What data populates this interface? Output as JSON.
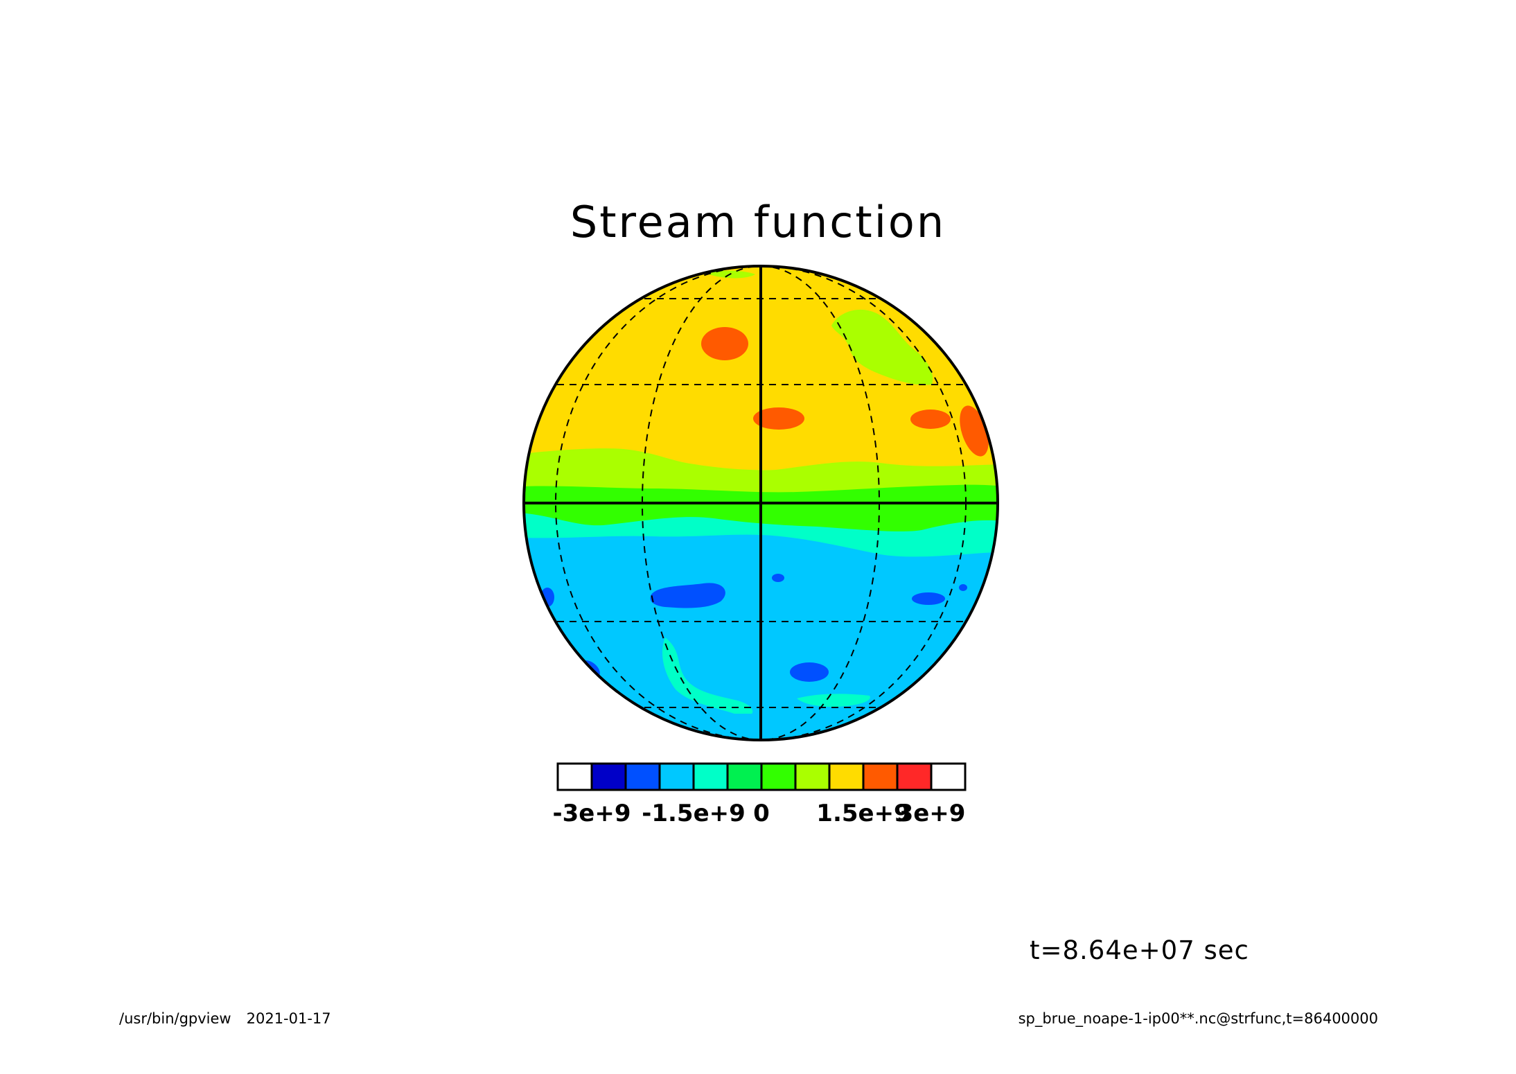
{
  "title": "Stream function",
  "time_label": "t=8.64e+07 sec",
  "footer": {
    "program": "/usr/bin/gpview",
    "date": "2021-01-17",
    "source": "sp_brue_noape-1-ip00**.nc@strfunc,t=86400000"
  },
  "colorbar": {
    "tick_labels": [
      "-3e+9",
      "-1.5e+9",
      "0",
      "1.5e+9",
      "3e+9"
    ],
    "tick_values": [
      -3000000000,
      -1500000000,
      0,
      1500000000,
      3000000000
    ],
    "levels": [
      {
        "color": "#ffffff"
      },
      {
        "color": "#0000c8"
      },
      {
        "color": "#0050ff"
      },
      {
        "color": "#00c8ff"
      },
      {
        "color": "#00ffc8"
      },
      {
        "color": "#00f050"
      },
      {
        "color": "#32ff00"
      },
      {
        "color": "#aaff00"
      },
      {
        "color": "#ffdc00"
      },
      {
        "color": "#ff5a00"
      },
      {
        "color": "#ff2828"
      },
      {
        "color": "#ffffff"
      }
    ]
  },
  "map": {
    "projection": "orthographic",
    "graticule": "dashed",
    "regions": [
      {
        "name": "north-band",
        "color": "#ffdc00"
      },
      {
        "name": "north-transition-band",
        "color": "#aaff00"
      },
      {
        "name": "equator-band",
        "color": "#32ff00"
      },
      {
        "name": "south-transition-band",
        "color": "#00ffc8"
      },
      {
        "name": "south-band",
        "color": "#00c8ff"
      },
      {
        "name": "high-centre",
        "color": "#ff5a00"
      },
      {
        "name": "low-centre",
        "color": "#0050ff"
      }
    ]
  }
}
